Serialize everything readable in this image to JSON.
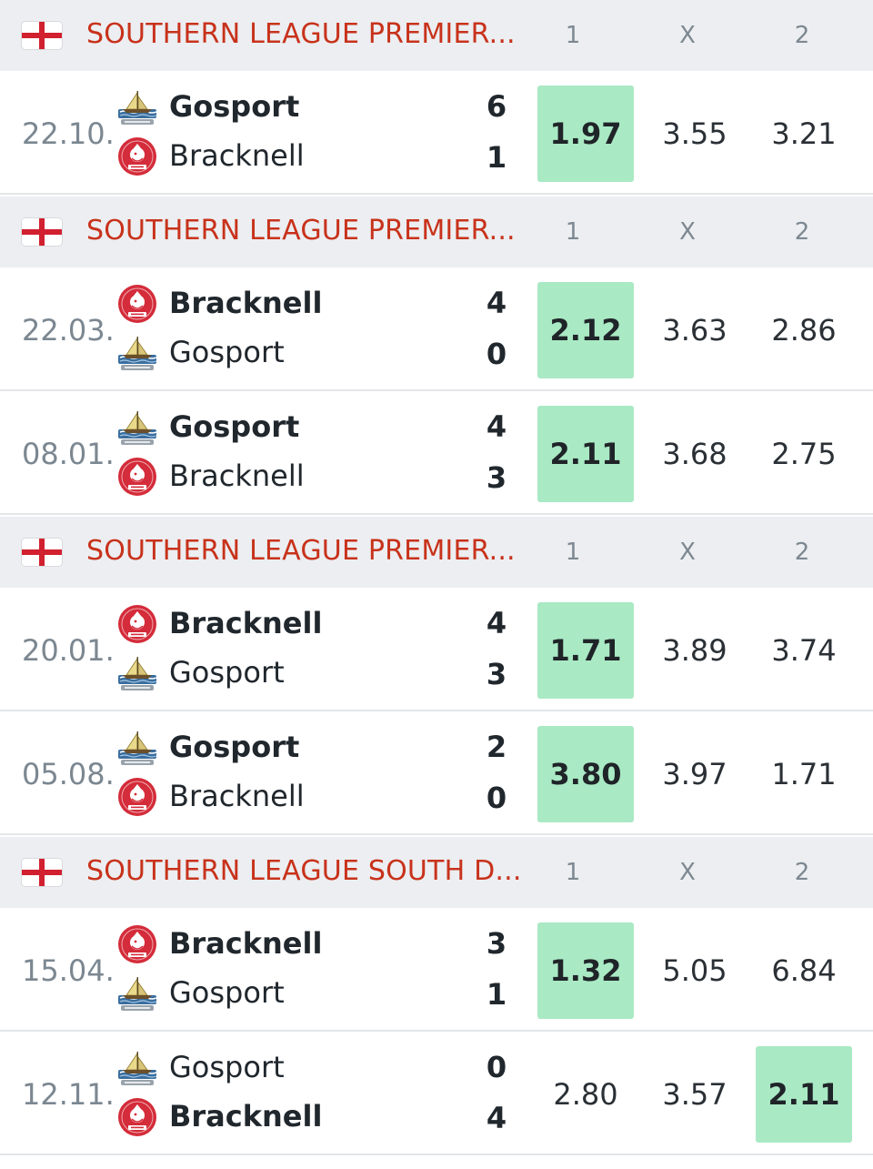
{
  "columns": {
    "home": "1",
    "draw": "X",
    "away": "2"
  },
  "colors": {
    "league_red": "#c8321b",
    "winning_odd_bg": "#a9e9c4",
    "header_bg": "#eceef1"
  },
  "sections": [
    {
      "league": "SOUTHERN LEAGUE PREMIER...",
      "flag": "england-flag-icon",
      "matches": [
        {
          "date": "22.10.",
          "home": "Gosport",
          "away": "Bracknell",
          "home_score": "6",
          "away_score": "1",
          "odds": [
            "1.97",
            "3.55",
            "3.21"
          ],
          "winner": "home",
          "highlight": 0
        }
      ]
    },
    {
      "league": "SOUTHERN LEAGUE PREMIER...",
      "flag": "england-flag-icon",
      "matches": [
        {
          "date": "22.03.",
          "home": "Bracknell",
          "away": "Gosport",
          "home_score": "4",
          "away_score": "0",
          "odds": [
            "2.12",
            "3.63",
            "2.86"
          ],
          "winner": "home",
          "highlight": 0
        },
        {
          "date": "08.01.",
          "home": "Gosport",
          "away": "Bracknell",
          "home_score": "4",
          "away_score": "3",
          "odds": [
            "2.11",
            "3.68",
            "2.75"
          ],
          "winner": "home",
          "highlight": 0
        }
      ]
    },
    {
      "league": "SOUTHERN LEAGUE PREMIER...",
      "flag": "england-flag-icon",
      "matches": [
        {
          "date": "20.01.",
          "home": "Bracknell",
          "away": "Gosport",
          "home_score": "4",
          "away_score": "3",
          "odds": [
            "1.71",
            "3.89",
            "3.74"
          ],
          "winner": "home",
          "highlight": 0
        },
        {
          "date": "05.08.",
          "home": "Gosport",
          "away": "Bracknell",
          "home_score": "2",
          "away_score": "0",
          "odds": [
            "3.80",
            "3.97",
            "1.71"
          ],
          "winner": "home",
          "highlight": 0
        }
      ]
    },
    {
      "league": "SOUTHERN LEAGUE SOUTH D...",
      "flag": "england-flag-icon",
      "matches": [
        {
          "date": "15.04.",
          "home": "Bracknell",
          "away": "Gosport",
          "home_score": "3",
          "away_score": "1",
          "odds": [
            "1.32",
            "5.05",
            "6.84"
          ],
          "winner": "home",
          "highlight": 0
        },
        {
          "date": "12.11.",
          "home": "Gosport",
          "away": "Bracknell",
          "home_score": "0",
          "away_score": "4",
          "odds": [
            "2.80",
            "3.57",
            "2.11"
          ],
          "winner": "away",
          "highlight": 2
        }
      ]
    }
  ]
}
